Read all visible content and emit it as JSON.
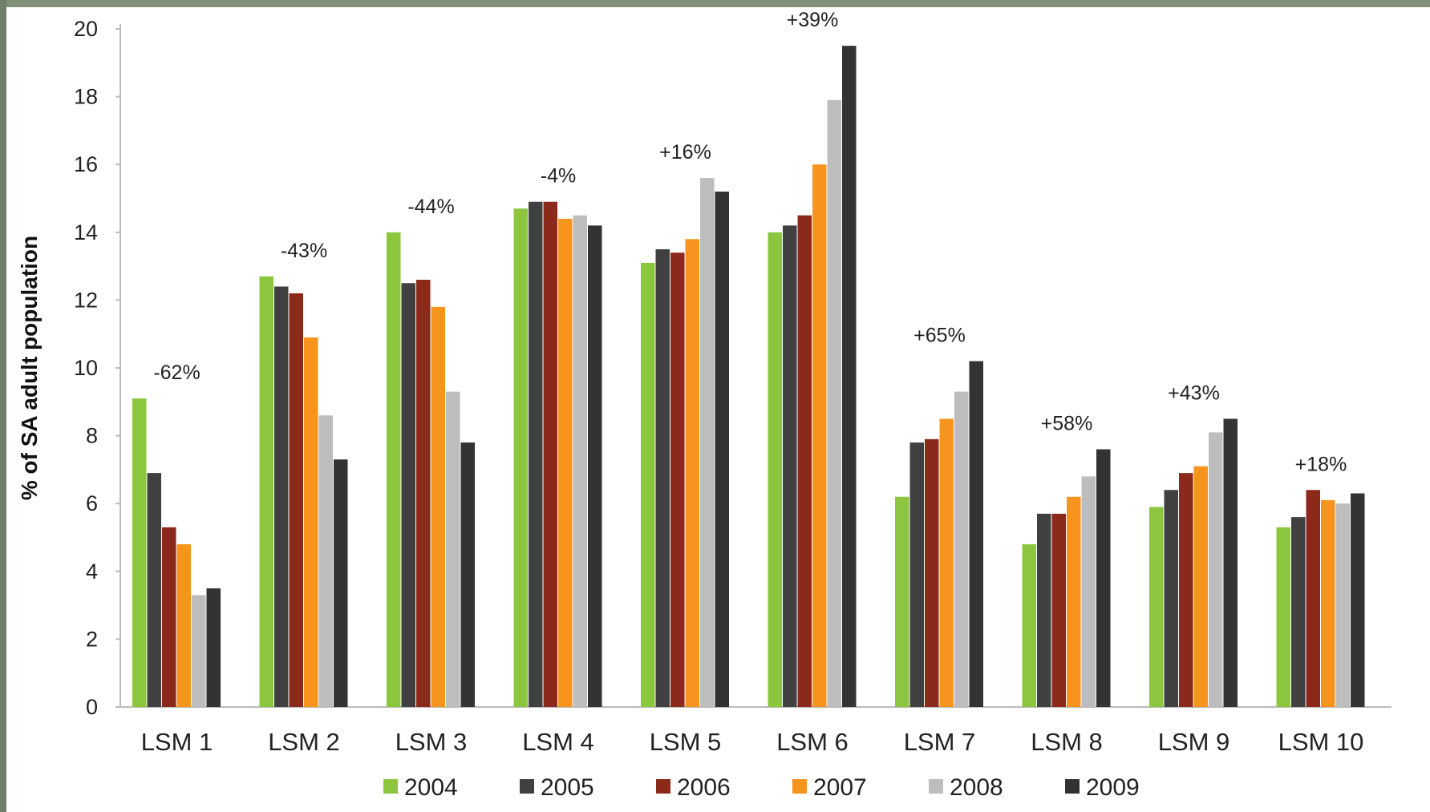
{
  "chart_data": {
    "type": "bar",
    "title": "",
    "xlabel": "",
    "ylabel": "% of SA adult population",
    "ylim": [
      0,
      20
    ],
    "yticks": [
      0,
      2,
      4,
      6,
      8,
      10,
      12,
      14,
      16,
      18,
      20
    ],
    "grid": false,
    "legend_position": "bottom",
    "categories": [
      "LSM 1",
      "LSM 2",
      "LSM 3",
      "LSM 4",
      "LSM 5",
      "LSM 6",
      "LSM 7",
      "LSM 8",
      "LSM 9",
      "LSM 10"
    ],
    "series": [
      {
        "name": "2004",
        "color": "#8cc63f",
        "values": [
          9.1,
          12.7,
          14.0,
          14.7,
          13.1,
          14.0,
          6.2,
          4.8,
          5.9,
          5.3
        ]
      },
      {
        "name": "2005",
        "color": "#404040",
        "values": [
          6.9,
          12.4,
          12.5,
          14.9,
          13.5,
          14.2,
          7.8,
          5.7,
          6.4,
          5.6
        ]
      },
      {
        "name": "2006",
        "color": "#8b2a1a",
        "values": [
          5.3,
          12.2,
          12.6,
          14.9,
          13.4,
          14.5,
          7.9,
          5.7,
          6.9,
          6.4
        ]
      },
      {
        "name": "2007",
        "color": "#f7941d",
        "values": [
          4.8,
          10.9,
          11.8,
          14.4,
          13.8,
          16.0,
          8.5,
          6.2,
          7.1,
          6.1
        ]
      },
      {
        "name": "2008",
        "color": "#bdbdbd",
        "values": [
          3.3,
          8.6,
          9.3,
          14.5,
          15.6,
          17.9,
          9.3,
          6.8,
          8.1,
          6.0
        ]
      },
      {
        "name": "2009",
        "color": "#333333",
        "values": [
          3.5,
          7.3,
          7.8,
          14.2,
          15.2,
          19.5,
          10.2,
          7.6,
          8.5,
          6.3
        ]
      }
    ],
    "annotations": [
      "-62%",
      "-43%",
      "-44%",
      "-4%",
      "+16%",
      "+39%",
      "+65%",
      "+58%",
      "+43%",
      "+18%"
    ]
  }
}
